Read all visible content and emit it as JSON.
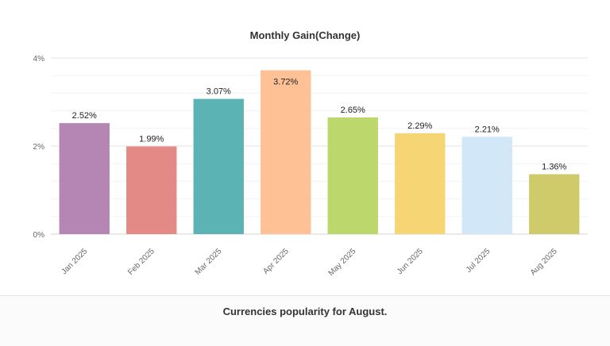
{
  "chart_data": {
    "type": "bar",
    "title": "Monthly Gain(Change)",
    "xlabel": "",
    "ylabel": "",
    "categories": [
      "Jan 2025",
      "Feb 2025",
      "Mar 2025",
      "Apr 2025",
      "May 2025",
      "Jun 2025",
      "Jul 2025",
      "Aug 2025"
    ],
    "values": [
      2.52,
      1.99,
      3.07,
      3.72,
      2.65,
      2.29,
      2.21,
      1.36
    ],
    "value_labels": [
      "2.52%",
      "1.99%",
      "3.07%",
      "3.72%",
      "2.65%",
      "2.29%",
      "2.21%",
      "1.36%"
    ],
    "colors": [
      "#b586b4",
      "#e38986",
      "#5bb3b3",
      "#fec095",
      "#bcd86d",
      "#f5d574",
      "#d2e7f7",
      "#cfca6a"
    ],
    "ylim": [
      0,
      4
    ],
    "yticks": [
      0,
      2,
      4
    ],
    "ytick_labels": [
      "0%",
      "2%",
      "4%"
    ],
    "grid": true
  },
  "footer": {
    "title": "Currencies popularity for August."
  }
}
